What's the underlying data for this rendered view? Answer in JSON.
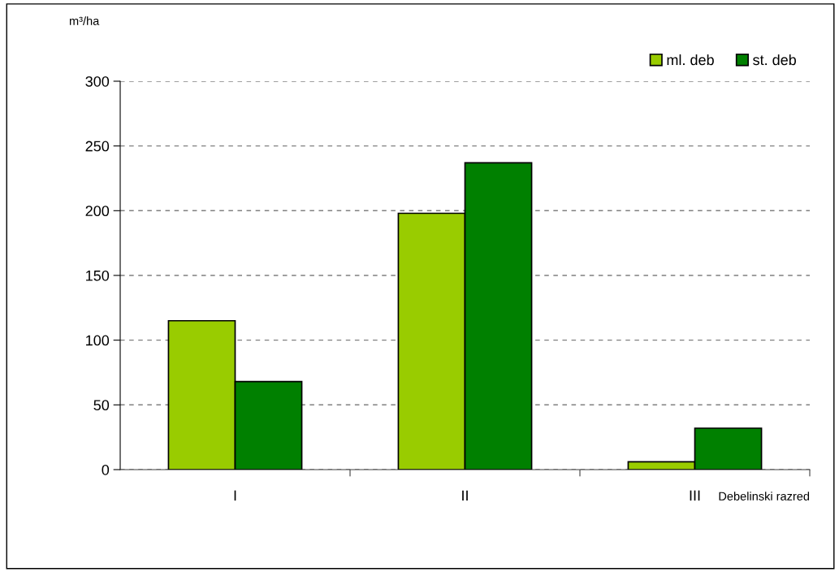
{
  "chart_data": {
    "type": "bar",
    "categories": [
      "I",
      "II",
      "III"
    ],
    "series": [
      {
        "name": "ml. deb",
        "color": "#99cc00",
        "values": [
          115,
          198,
          6
        ]
      },
      {
        "name": "st. deb",
        "color": "#008000",
        "values": [
          68,
          237,
          32
        ]
      }
    ],
    "xlabel": "Debelinski razred",
    "ylabel": "m³/ha",
    "ylim": [
      0,
      300
    ],
    "yticks": [
      0,
      50,
      100,
      150,
      200,
      250,
      300
    ],
    "grid": "y",
    "legend": "top right"
  }
}
